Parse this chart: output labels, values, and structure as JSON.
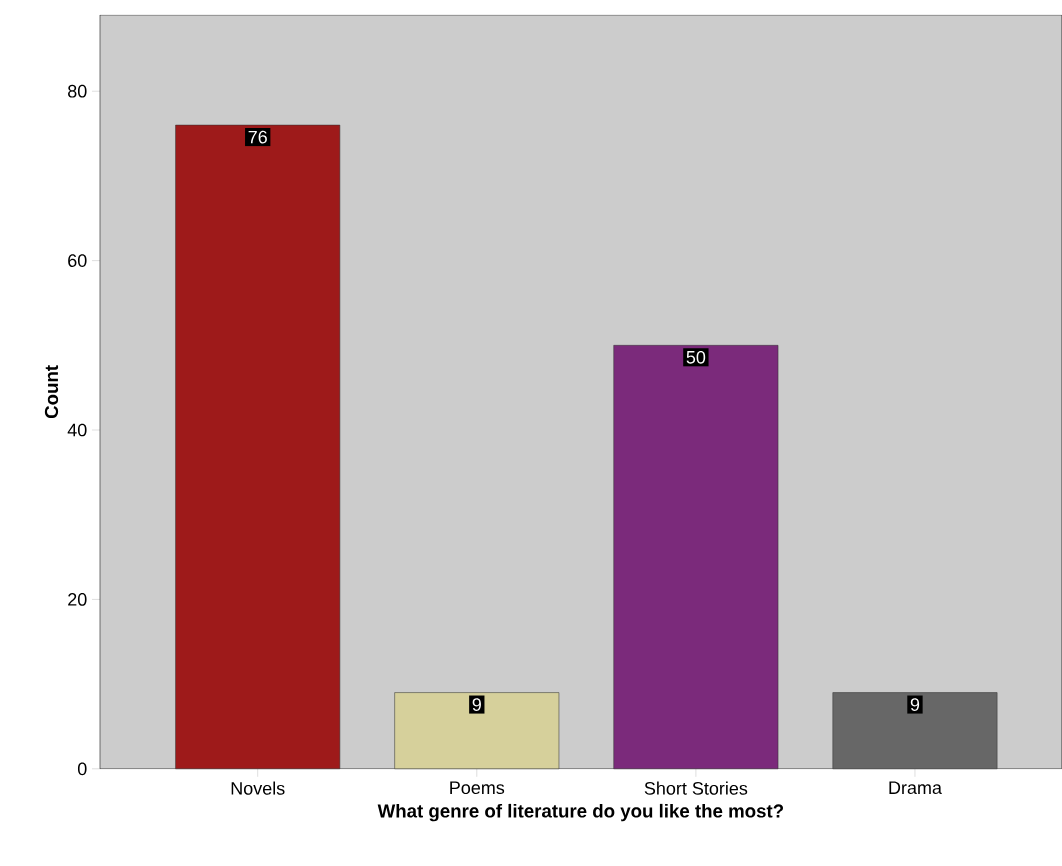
{
  "chart_data": {
    "type": "bar",
    "xlabel": "What genre of literature do you like the most?",
    "ylabel": "Count",
    "categories": [
      "Novels",
      "Poems",
      "Short Stories",
      "Drama"
    ],
    "values": [
      76,
      9,
      50,
      9
    ],
    "colors": [
      "#9e1a1a",
      "#d6d09b",
      "#7b2a7b",
      "#676767"
    ],
    "ylim": [
      0,
      89
    ],
    "yticks": [
      0,
      20,
      40,
      60,
      80
    ],
    "data_labels": true
  }
}
